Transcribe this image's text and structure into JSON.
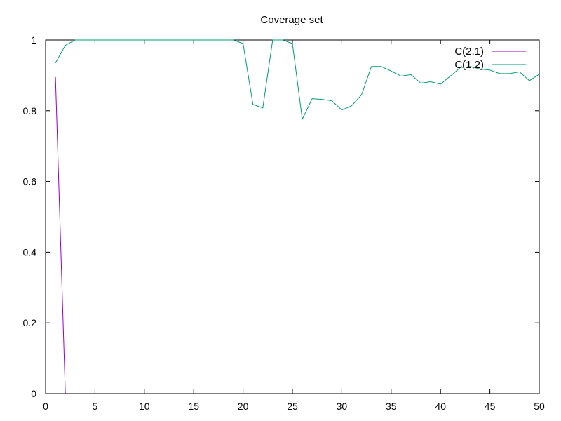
{
  "chart_data": {
    "type": "line",
    "title": "Coverage set",
    "xlabel": "",
    "ylabel": "",
    "xlim": [
      0,
      50
    ],
    "ylim": [
      0,
      1
    ],
    "x_ticks": [
      0,
      5,
      10,
      15,
      20,
      25,
      30,
      35,
      40,
      45,
      50
    ],
    "x_tick_labels": [
      "0",
      "5",
      "10",
      "15",
      "20",
      "25",
      "30",
      "35",
      "40",
      "45",
      "50"
    ],
    "y_ticks": [
      0,
      0.2,
      0.4,
      0.6,
      0.8,
      1
    ],
    "y_tick_labels": [
      "0",
      "0.2",
      "0.4",
      "0.6",
      "0.8",
      "1"
    ],
    "grid": false,
    "legend_position": "top-right",
    "series": [
      {
        "name": "C(2,1)",
        "color": "#9400d3",
        "x": [
          1,
          2
        ],
        "y": [
          0.895,
          0.0
        ]
      },
      {
        "name": "C(1,2)",
        "color": "#009e73",
        "x": [
          1,
          2,
          3,
          4,
          5,
          6,
          7,
          8,
          9,
          10,
          11,
          12,
          13,
          14,
          15,
          16,
          17,
          18,
          19,
          20,
          21,
          22,
          23,
          24,
          25,
          26,
          27,
          28,
          29,
          30,
          31,
          32,
          33,
          34,
          35,
          36,
          37,
          38,
          39,
          40,
          41,
          42,
          43,
          44,
          45,
          46,
          47,
          48,
          49,
          50
        ],
        "y": [
          0.935,
          0.985,
          1.0,
          1.0,
          1.0,
          1.0,
          1.0,
          1.0,
          1.0,
          1.0,
          1.0,
          1.0,
          1.0,
          1.0,
          1.0,
          1.0,
          1.0,
          1.0,
          1.0,
          0.99,
          0.818,
          0.808,
          1.0,
          1.0,
          0.99,
          0.776,
          0.834,
          0.832,
          0.828,
          0.802,
          0.814,
          0.845,
          0.925,
          0.925,
          0.912,
          0.898,
          0.902,
          0.878,
          0.882,
          0.875,
          0.898,
          0.922,
          0.925,
          0.918,
          0.915,
          0.905,
          0.905,
          0.91,
          0.885,
          0.903
        ]
      }
    ]
  }
}
